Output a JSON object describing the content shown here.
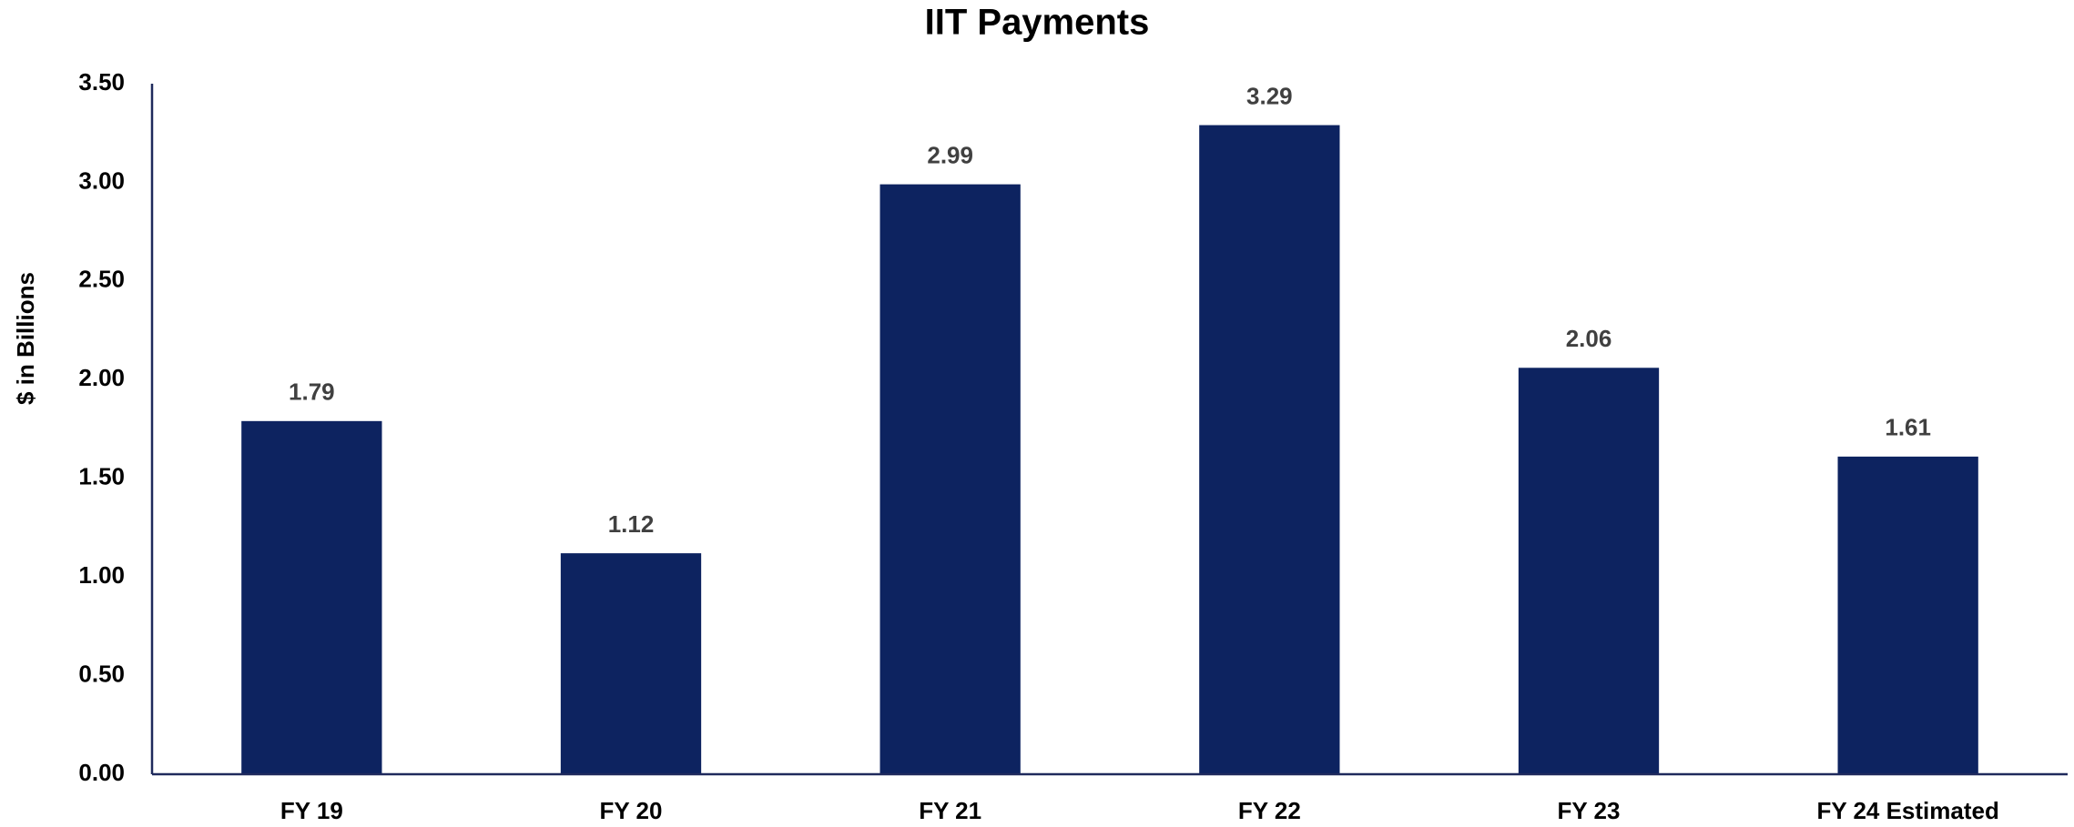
{
  "chart_data": {
    "type": "bar",
    "title": "IIT Payments",
    "y_label": "$ in Billions",
    "categories": [
      "FY 19",
      "FY 20",
      "FY 21",
      "FY 22",
      "FY 23",
      "FY 24 Estimated"
    ],
    "values": [
      1.79,
      1.12,
      2.99,
      3.29,
      2.06,
      1.61
    ],
    "color": "#0d2360",
    "ylim": [
      0,
      3.5
    ],
    "yticks": [
      {
        "value": 0,
        "label": "0.00"
      },
      {
        "value": 0.5,
        "label": "0.50"
      },
      {
        "value": 1,
        "label": "1.00"
      },
      {
        "value": 1.5,
        "label": "1.50"
      },
      {
        "value": 2,
        "label": "2.00"
      },
      {
        "value": 2.5,
        "label": "2.50"
      },
      {
        "value": 3,
        "label": "3.00"
      },
      {
        "value": 3.5,
        "label": "3.50"
      }
    ],
    "grid": false
  }
}
